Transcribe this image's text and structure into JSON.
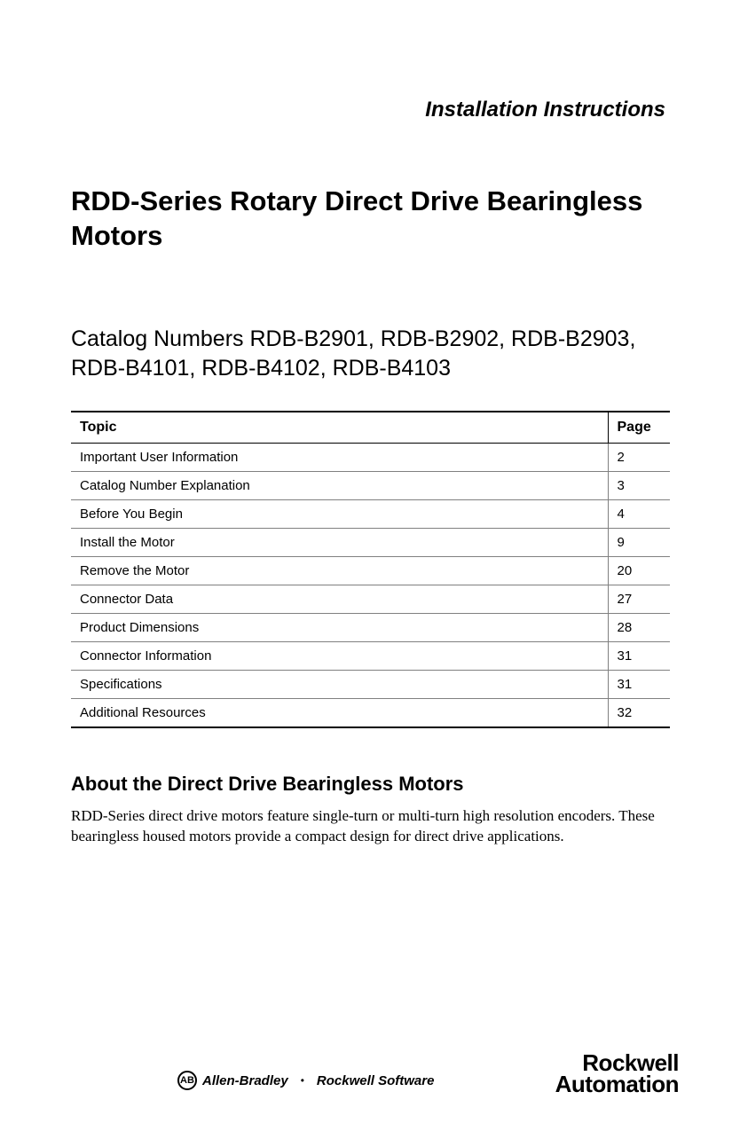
{
  "header": {
    "doc_type": "Installation Instructions"
  },
  "title": "RDD-Series Rotary Direct Drive Bearingless Motors",
  "catalog_line": "Catalog Numbers RDB-B2901, RDB-B2902, RDB-B2903, RDB-B4101, RDB-B4102, RDB-B4103",
  "toc": {
    "columns": [
      "Topic",
      "Page"
    ],
    "rows": [
      {
        "topic": "Important User Information",
        "page": "2"
      },
      {
        "topic": "Catalog Number Explanation",
        "page": "3"
      },
      {
        "topic": "Before You Begin",
        "page": "4"
      },
      {
        "topic": "Install the Motor",
        "page": "9"
      },
      {
        "topic": "Remove the Motor",
        "page": "20"
      },
      {
        "topic": "Connector Data",
        "page": "27"
      },
      {
        "topic": "Product Dimensions",
        "page": "28"
      },
      {
        "topic": "Connector Information",
        "page": "31"
      },
      {
        "topic": "Specifications",
        "page": "31"
      },
      {
        "topic": "Additional Resources",
        "page": "32"
      }
    ]
  },
  "section": {
    "heading": "About the Direct Drive Bearingless Motors",
    "body": "RDD-Series direct drive motors feature single-turn or multi-turn high resolution encoders. These bearingless housed motors provide a compact design for direct drive applications."
  },
  "footer": {
    "ab_icon": "AB",
    "ab_text": "Allen-Bradley",
    "rs_text": "Rockwell Software",
    "ra_line1": "Rockwell",
    "ra_line2": "Automation"
  },
  "styling": {
    "page_bg": "#ffffff",
    "text_color": "#000000",
    "border_heavy": "#000000",
    "border_light": "#808080",
    "title_fontsize": 31,
    "catalog_fontsize": 25,
    "doctype_fontsize": 24,
    "heading_fontsize": 22,
    "body_fontsize": 17,
    "table_header_fontsize": 16,
    "table_cell_fontsize": 15
  }
}
